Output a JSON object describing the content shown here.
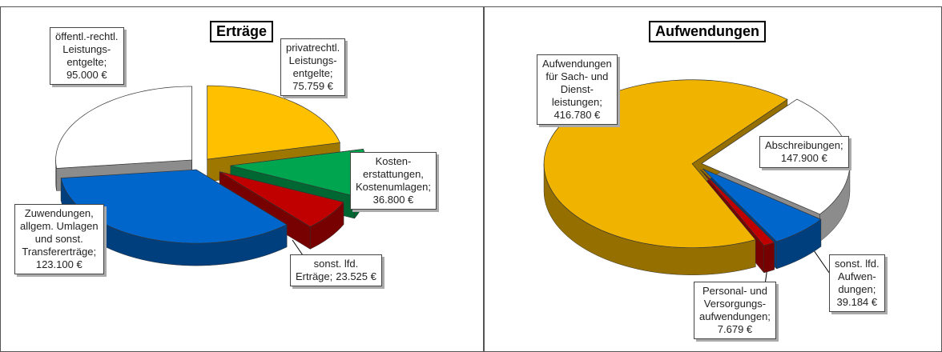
{
  "chart_data": [
    {
      "type": "pie",
      "title": "Erträge",
      "categories": [
        "privatrechtl.\nLeistungs-\nentgelte;",
        "Kosten-\nerstattungen,\nKostenumlagen;",
        "sonst. lfd.\nErträge;",
        "Zuwendungen,\nallgem. Umlagen\nund sonst.\nTransfererträge;",
        "öffentl.-rechtl.\nLeistungs-\nentgelte;"
      ],
      "values": [
        75759,
        36800,
        23525,
        123100,
        95000
      ],
      "value_labels": [
        "75.759 €",
        "36.800 €",
        "23.525 €",
        "123.100 €",
        "95.000 €"
      ],
      "colors": [
        "#ffc000",
        "#00a550",
        "#c00000",
        "#0066cc",
        "#ffffff"
      ]
    },
    {
      "type": "pie",
      "title": "Aufwendungen",
      "categories": [
        "Abschreibungen;",
        "sonst. lfd.\nAufwen-\ndungen;",
        "Personal- und\nVersorgungs-\naufwendungen;",
        "Aufwendungen\nfür Sach- und\nDienst-\nleistungen;"
      ],
      "values": [
        147900,
        39184,
        7679,
        416780
      ],
      "value_labels": [
        "147.900 €",
        "39.184 €",
        "7.679 €",
        "416.780 €"
      ],
      "colors": [
        "#ffffff",
        "#0066cc",
        "#c00000",
        "#f0b400"
      ]
    }
  ]
}
